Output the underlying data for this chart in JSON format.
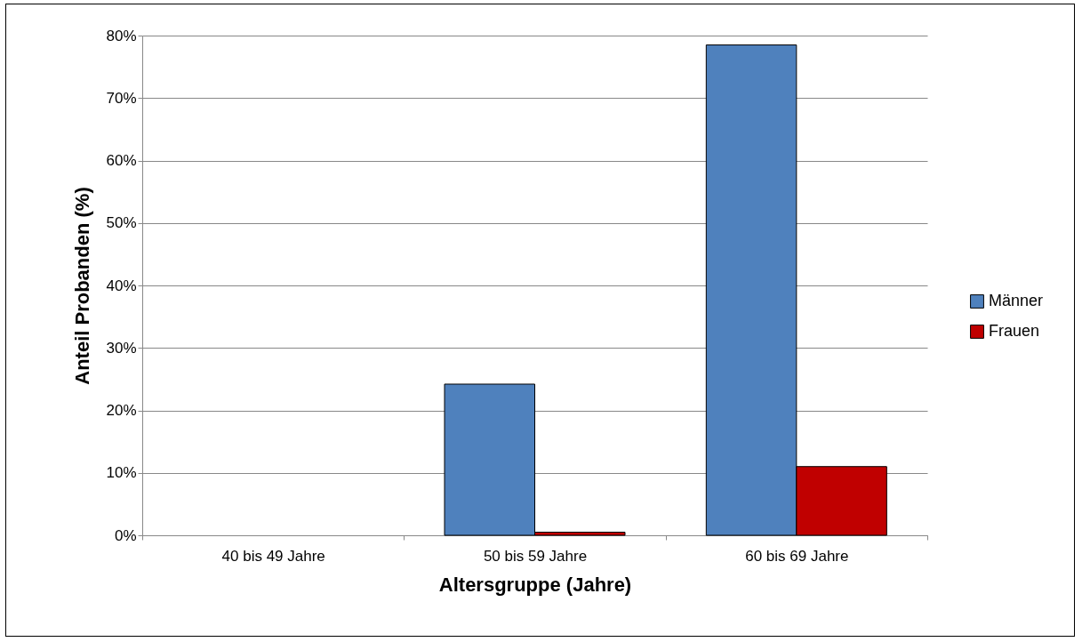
{
  "chart_data": {
    "type": "bar",
    "xlabel": "Altersgruppe (Jahre)",
    "ylabel": "Anteil Probanden (%)",
    "categories": [
      "40 bis 49 Jahre",
      "50 bis 59 Jahre",
      "60 bis 69 Jahre"
    ],
    "series": [
      {
        "name": "Männer",
        "color": "#4f81bd",
        "values": [
          0,
          24.2,
          78.5
        ]
      },
      {
        "name": "Frauen",
        "color": "#c00000",
        "values": [
          0,
          0.5,
          11
        ]
      }
    ],
    "ylim": [
      0,
      80
    ],
    "yticks": [
      {
        "value": 0,
        "label": "0%"
      },
      {
        "value": 10,
        "label": "10%"
      },
      {
        "value": 20,
        "label": "20%"
      },
      {
        "value": 30,
        "label": "30%"
      },
      {
        "value": 40,
        "label": "40%"
      },
      {
        "value": 50,
        "label": "50%"
      },
      {
        "value": 60,
        "label": "60%"
      },
      {
        "value": 70,
        "label": "70%"
      },
      {
        "value": 80,
        "label": "80%"
      }
    ],
    "grid": "y",
    "legend": "right"
  }
}
